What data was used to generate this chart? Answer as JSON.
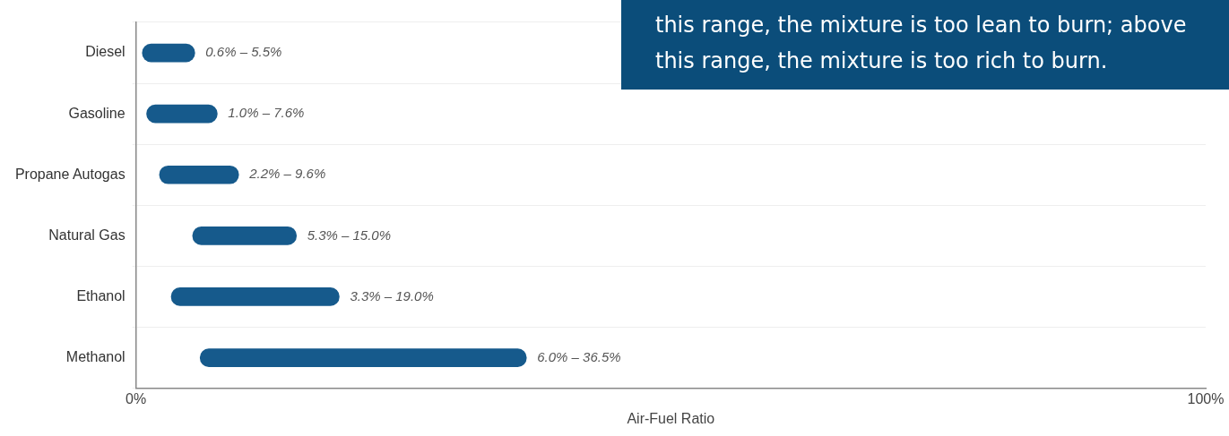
{
  "chart_data": {
    "type": "bar",
    "orientation": "horizontal",
    "xlabel": "Air-Fuel Ratio",
    "categories": [
      "Diesel",
      "Gasoline",
      "Propane Autogas",
      "Natural Gas",
      "Ethanol",
      "Methanol"
    ],
    "base": [
      0.6,
      1.0,
      2.2,
      5.3,
      3.3,
      6.0
    ],
    "values": [
      4.9,
      6.6,
      7.4,
      9.7,
      15.7,
      30.5
    ],
    "color": "#165a8c",
    "xlim": [
      0,
      100
    ],
    "xticks": [
      {
        "value": 0,
        "label": "0%"
      },
      {
        "value": 100,
        "label": "100%"
      }
    ],
    "grid": "y",
    "annotations": [
      "this range, the mixture is too lean to burn; above",
      "this range, the mixture is too rich to burn.",
      {
        "text": "0.6% – 5.5%",
        "x": 5.5,
        "y": "Diesel"
      },
      {
        "text": "1.0% – 7.6%",
        "x": 7.6,
        "y": "Gasoline"
      },
      {
        "text": "2.2% – 9.6%",
        "x": 9.6,
        "y": "Propane Autogas"
      },
      {
        "text": "5.3% – 15.0%",
        "x": 15.0,
        "y": "Natural Gas"
      },
      {
        "text": "3.3% – 19.0%",
        "x": 19.0,
        "y": "Ethanol"
      },
      {
        "text": "6.0% – 36.5%",
        "x": 36.5,
        "y": "Methanol"
      }
    ]
  }
}
